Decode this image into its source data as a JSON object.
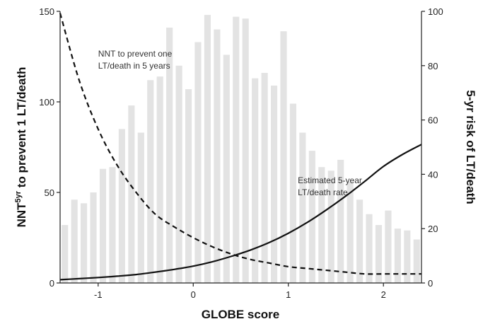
{
  "chart_data": {
    "type": "bar+line",
    "xlabel": "GLOBE score",
    "ylabel_left_main": "NNT",
    "ylabel_left_sup": "5yr",
    "ylabel_left_rest": " to prevent 1 LT/death",
    "ylabel_right": "5-yr risk of LT/death",
    "xlim": [
      -1.4,
      2.4
    ],
    "ylim_left": [
      0,
      150
    ],
    "ylim_right": [
      0,
      100
    ],
    "x_ticks": [
      -1,
      0,
      1,
      2
    ],
    "x_tick_labels": [
      "-1",
      "0",
      "1",
      "2"
    ],
    "y_left_ticks": [
      0,
      50,
      100,
      150
    ],
    "y_left_tick_labels": [
      "0",
      "50",
      "100",
      "150"
    ],
    "y_right_ticks": [
      0,
      20,
      40,
      60,
      80,
      100
    ],
    "y_right_tick_labels": [
      "0",
      "20",
      "40",
      "60",
      "80",
      "100"
    ],
    "histogram": {
      "color": "#e3e3e3",
      "bin_width": 0.1,
      "x": [
        -1.35,
        -1.25,
        -1.15,
        -1.05,
        -0.95,
        -0.85,
        -0.75,
        -0.65,
        -0.55,
        -0.45,
        -0.35,
        -0.25,
        -0.15,
        -0.05,
        0.05,
        0.15,
        0.25,
        0.35,
        0.45,
        0.55,
        0.65,
        0.75,
        0.85,
        0.95,
        1.05,
        1.15,
        1.25,
        1.35,
        1.45,
        1.55,
        1.65,
        1.75,
        1.85,
        1.95,
        2.05,
        2.15,
        2.25,
        2.35
      ],
      "values": [
        32,
        46,
        44,
        50,
        63,
        64,
        85,
        98,
        83,
        112,
        114,
        141,
        120,
        107,
        133,
        148,
        140,
        126,
        147,
        146,
        113,
        116,
        109,
        139,
        99,
        83,
        73,
        64,
        62,
        68,
        56,
        46,
        38,
        32,
        40,
        30,
        29,
        24
      ]
    },
    "series": [
      {
        "name": "NNT to prevent one LT/death in 5 years",
        "axis": "left",
        "style": "dashed",
        "color": "#111111",
        "x": [
          -1.4,
          -1.2,
          -1.0,
          -0.8,
          -0.6,
          -0.4,
          -0.2,
          0.0,
          0.2,
          0.4,
          0.6,
          0.8,
          1.0,
          1.2,
          1.4,
          1.6,
          1.8,
          2.0,
          2.2,
          2.4
        ],
        "values": [
          149,
          112,
          85,
          65,
          50,
          38,
          31,
          25,
          20,
          16,
          13,
          11,
          9,
          8,
          7,
          6,
          5,
          5,
          5,
          5
        ]
      },
      {
        "name": "Estimated 5-year LT/death rate",
        "axis": "right",
        "style": "solid",
        "color": "#111111",
        "x": [
          -1.4,
          -1.2,
          -1.0,
          -0.8,
          -0.6,
          -0.4,
          -0.2,
          0.0,
          0.2,
          0.4,
          0.6,
          0.8,
          1.0,
          1.2,
          1.4,
          1.6,
          1.8,
          2.0,
          2.2,
          2.4
        ],
        "values": [
          1.2,
          1.6,
          2.0,
          2.5,
          3.1,
          4.0,
          5.0,
          6.2,
          7.8,
          9.8,
          12.1,
          14.9,
          18.3,
          22.3,
          26.9,
          31.9,
          37.3,
          42.9,
          47.3,
          51.0
        ]
      }
    ],
    "annotations": [
      {
        "lines": [
          "NNT to prevent one",
          "LT/death in 5 years"
        ],
        "x": -1.0,
        "y_left": 125
      },
      {
        "lines": [
          "Estimated 5-year",
          "LT/death rate"
        ],
        "x": 1.1,
        "y_left": 55
      }
    ]
  }
}
